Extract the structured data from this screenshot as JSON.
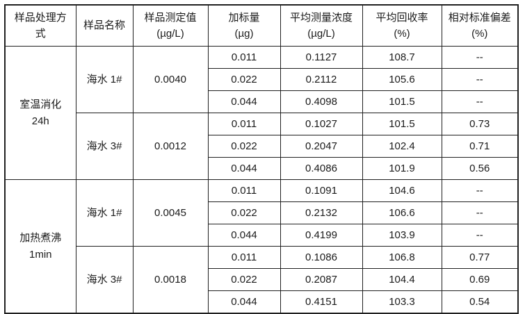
{
  "table": {
    "headers": [
      "样品处理方\n式",
      "样品名称",
      "样品测定值\n(µg/L)",
      "加标量\n(µg)",
      "平均测量浓度\n(µg/L)",
      "平均回收率\n(%)",
      "相对标准偏差\n(%)"
    ],
    "sections": [
      {
        "treatment": "室温消化\n24h",
        "samples": [
          {
            "name": "海水 1#",
            "measured": "0.0040",
            "rows": [
              [
                "0.011",
                "0.1127",
                "108.7",
                "--"
              ],
              [
                "0.022",
                "0.2112",
                "105.6",
                "--"
              ],
              [
                "0.044",
                "0.4098",
                "101.5",
                "--"
              ]
            ]
          },
          {
            "name": "海水 3#",
            "measured": "0.0012",
            "rows": [
              [
                "0.011",
                "0.1027",
                "101.5",
                "0.73"
              ],
              [
                "0.022",
                "0.2047",
                "102.4",
                "0.71"
              ],
              [
                "0.044",
                "0.4086",
                "101.9",
                "0.56"
              ]
            ]
          }
        ]
      },
      {
        "treatment": "加热煮沸\n1min",
        "samples": [
          {
            "name": "海水 1#",
            "measured": "0.0045",
            "rows": [
              [
                "0.011",
                "0.1091",
                "104.6",
                "--"
              ],
              [
                "0.022",
                "0.2132",
                "106.6",
                "--"
              ],
              [
                "0.044",
                "0.4199",
                "103.9",
                "--"
              ]
            ]
          },
          {
            "name": "海水 3#",
            "measured": "0.0018",
            "rows": [
              [
                "0.011",
                "0.1086",
                "106.8",
                "0.77"
              ],
              [
                "0.022",
                "0.2087",
                "104.4",
                "0.69"
              ],
              [
                "0.044",
                "0.4151",
                "103.3",
                "0.54"
              ]
            ]
          }
        ]
      }
    ],
    "colors": {
      "text": "#1a1a1a",
      "border": "#1f1f1f",
      "background": "#ffffff"
    }
  }
}
